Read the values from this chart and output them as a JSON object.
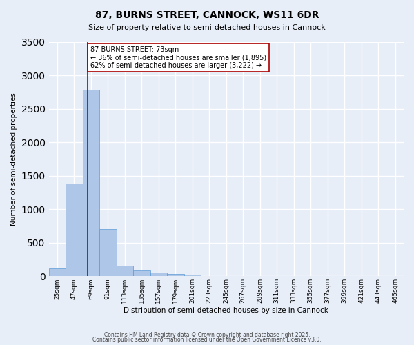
{
  "title": "87, BURNS STREET, CANNOCK, WS11 6DR",
  "subtitle": "Size of property relative to semi-detached houses in Cannock",
  "xlabel": "Distribution of semi-detached houses by size in Cannock",
  "ylabel": "Number of semi-detached properties",
  "property_label": "87 BURNS STREET: 73sqm",
  "pct_smaller": 36,
  "count_smaller": 1895,
  "pct_larger": 62,
  "count_larger": 3222,
  "bin_labels": [
    "25sqm",
    "47sqm",
    "69sqm",
    "91sqm",
    "113sqm",
    "135sqm",
    "157sqm",
    "179sqm",
    "201sqm",
    "223sqm",
    "245sqm",
    "267sqm",
    "289sqm",
    "311sqm",
    "333sqm",
    "355sqm",
    "377sqm",
    "399sqm",
    "421sqm",
    "443sqm",
    "465sqm"
  ],
  "bin_values": [
    120,
    1380,
    2780,
    700,
    160,
    90,
    50,
    30,
    20,
    0,
    0,
    0,
    0,
    0,
    0,
    0,
    0,
    0,
    0,
    0,
    0
  ],
  "bar_color": "#aec6e8",
  "bar_edge_color": "#5b9bd5",
  "red_line_color": "#aa0000",
  "background_color": "#e8eef8",
  "grid_color": "#ffffff",
  "annotation_box_color": "#ffffff",
  "annotation_box_edge": "#aa0000",
  "ylim": [
    0,
    3500
  ],
  "red_line_x": 1.82,
  "footer1": "Contains HM Land Registry data © Crown copyright and database right 2025.",
  "footer2": "Contains public sector information licensed under the Open Government Licence v3.0."
}
